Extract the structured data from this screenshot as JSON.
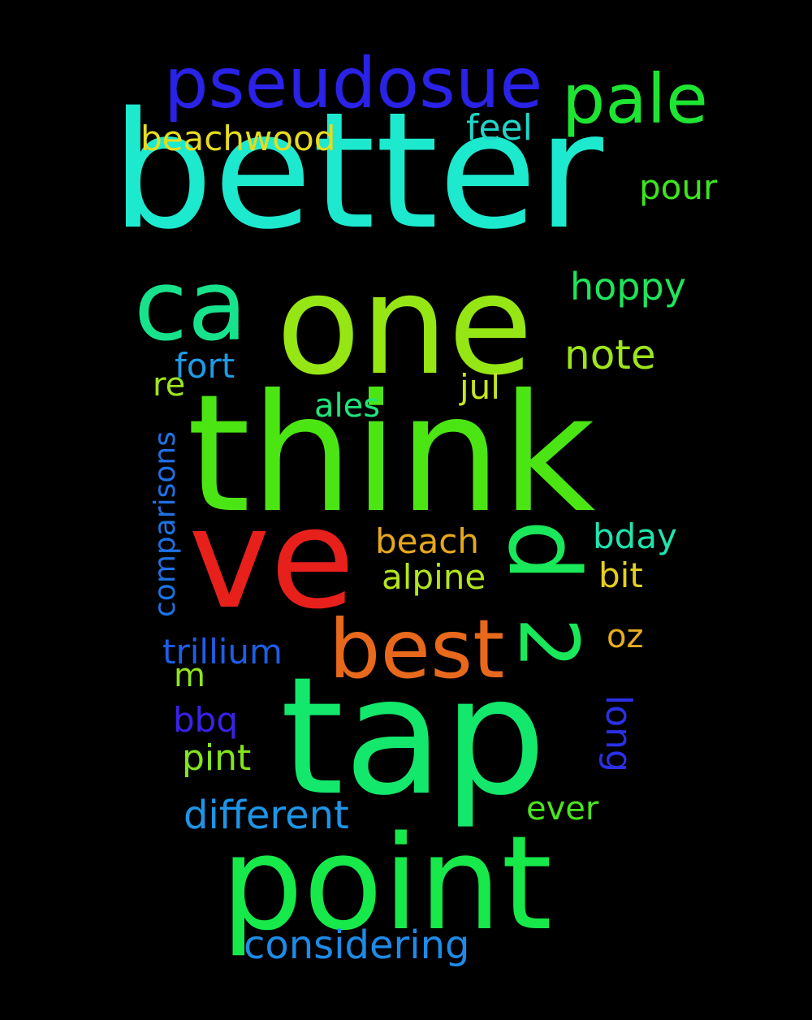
{
  "words": [
    {
      "text": "better",
      "color": "#1de9cf"
    },
    {
      "text": "think",
      "color": "#4ce514"
    },
    {
      "text": "tap",
      "color": "#14e86c"
    },
    {
      "text": "point",
      "color": "#17e94b"
    },
    {
      "text": "one",
      "color": "#96e514"
    },
    {
      "text": "ve",
      "color": "#e8201c"
    },
    {
      "text": "best",
      "color": "#e8681c"
    },
    {
      "text": "ca",
      "color": "#18e38d"
    },
    {
      "text": "pseudosue",
      "color": "#2a22e6"
    },
    {
      "text": "pale",
      "color": "#1ee532"
    },
    {
      "text": "d",
      "color": "#19e85a"
    },
    {
      "text": "2",
      "color": "#18e85a"
    },
    {
      "text": "considering",
      "color": "#1e8be6"
    },
    {
      "text": "different",
      "color": "#1e95e6"
    },
    {
      "text": "note",
      "color": "#9de51c"
    },
    {
      "text": "hoppy",
      "color": "#1ee55b"
    },
    {
      "text": "beachwood",
      "color": "#e6dc1e"
    },
    {
      "text": "feel",
      "color": "#1ed7c8"
    },
    {
      "text": "pour",
      "color": "#3ee51e"
    },
    {
      "text": "trillium",
      "color": "#1e5ee6"
    },
    {
      "text": "beach",
      "color": "#e6a81e"
    },
    {
      "text": "alpine",
      "color": "#b2e51e"
    },
    {
      "text": "bday",
      "color": "#1ee5b0"
    },
    {
      "text": "bit",
      "color": "#e6cf1e"
    },
    {
      "text": "comparisons",
      "color": "#1e72e6"
    },
    {
      "text": "fort",
      "color": "#1e9be6"
    },
    {
      "text": "ales",
      "color": "#1ee57a"
    },
    {
      "text": "jul",
      "color": "#c9e51e"
    },
    {
      "text": "re",
      "color": "#9ee51e"
    },
    {
      "text": "oz",
      "color": "#e6ad1e"
    },
    {
      "text": "m",
      "color": "#8de51e"
    },
    {
      "text": "bbq",
      "color": "#3a22e6"
    },
    {
      "text": "long",
      "color": "#2a30e6"
    },
    {
      "text": "pint",
      "color": "#84e51e"
    },
    {
      "text": "ever",
      "color": "#4be51e"
    }
  ]
}
